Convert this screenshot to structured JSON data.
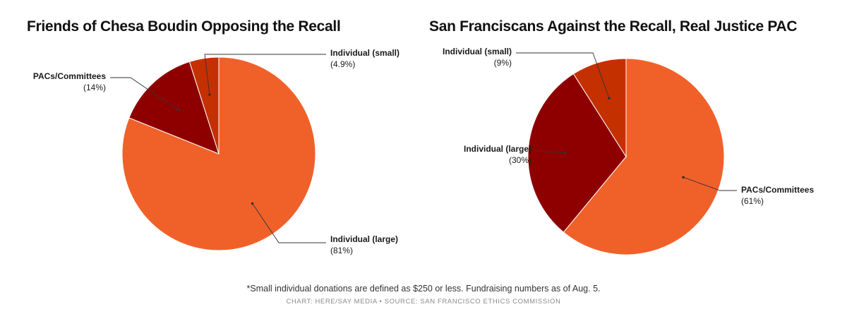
{
  "chart_data": [
    {
      "type": "pie",
      "title": "Friends of Chesa Boudin Opposing the Recall",
      "slices": [
        {
          "name": "Individual (large)",
          "value": 81,
          "label_pct": "(81%)",
          "color": "#f0612a"
        },
        {
          "name": "PACs/Committees",
          "value": 14,
          "label_pct": "(14%)",
          "color": "#8e0000"
        },
        {
          "name": "Individual (small)",
          "value": 4.9,
          "label_pct": "(4.9%)",
          "color": "#c53000"
        }
      ]
    },
    {
      "type": "pie",
      "title": "San Franciscans Against the Recall, Real Justice PAC",
      "slices": [
        {
          "name": "PACs/Committees",
          "value": 61,
          "label_pct": "(61%)",
          "color": "#f0612a"
        },
        {
          "name": "Individual (large)",
          "value": 30,
          "label_pct": "(30%)",
          "color": "#8e0000"
        },
        {
          "name": "Individual (small)",
          "value": 9,
          "label_pct": "(9%)",
          "color": "#c53000"
        }
      ]
    }
  ],
  "footnote": "*Small individual donations are defined as $250 or less. Fundraising numbers as of Aug. 5.",
  "credit": "CHART: HERE/SAY MEDIA • SOURCE: SAN FRANCISCO ETHICS COMMISSION"
}
